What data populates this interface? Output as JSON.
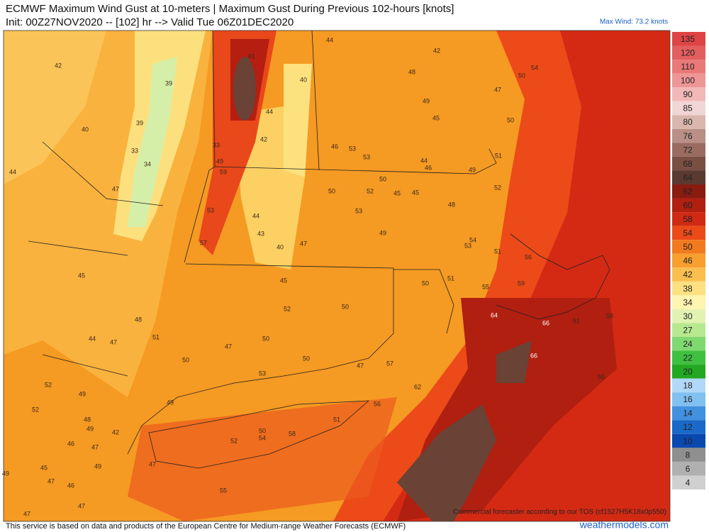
{
  "header": {
    "title": "ECMWF Maximum Wind Gust at 10-meters | Maximum Gust During Previous 102-hours [knots]",
    "subtitle": "Init: 00Z27NOV2020 -- [102] hr --> Valid Tue 06Z01DEC2020",
    "max_wind": "Max Wind: 73.2 knots"
  },
  "colorbar": {
    "levels": [
      135,
      120,
      110,
      100,
      90,
      85,
      80,
      76,
      72,
      68,
      64,
      62,
      60,
      58,
      54,
      50,
      46,
      42,
      38,
      34,
      30,
      27,
      24,
      22,
      20,
      18,
      16,
      14,
      12,
      10,
      8,
      6,
      4
    ],
    "colors": [
      "#de4444",
      "#e35e5e",
      "#e97878",
      "#ee9696",
      "#f2b8b8",
      "#f0d6d4",
      "#d9b7ae",
      "#b98f86",
      "#9a6c60",
      "#7a4f43",
      "#5a3a30",
      "#8a1b10",
      "#b01f10",
      "#d02a14",
      "#ec4a18",
      "#f27a1e",
      "#f89f30",
      "#fbbf50",
      "#fde080",
      "#fff4b0",
      "#e2f2b2",
      "#b8e890",
      "#80d870",
      "#40c040",
      "#22a822",
      "#b2d8f8",
      "#82c0f0",
      "#4290e0",
      "#1a68c8",
      "#0a48b0",
      "#8f8f8f",
      "#b0b0b0",
      "#d0d0d0"
    ]
  },
  "map": {
    "gust_labels": [
      42,
      40,
      44,
      47,
      39,
      33,
      34,
      39,
      61,
      40,
      44,
      42,
      33,
      49,
      59,
      53,
      57,
      44,
      43,
      40,
      47,
      50,
      52,
      50,
      45,
      45,
      53,
      49,
      48,
      46,
      53,
      53,
      44,
      46,
      49,
      42,
      44,
      48,
      49,
      45,
      50,
      54,
      47,
      50,
      51,
      52,
      53,
      54,
      51,
      56,
      45,
      45,
      52,
      50,
      50,
      51,
      55,
      59,
      64,
      66,
      66,
      51,
      58,
      55,
      48,
      51,
      44,
      47,
      50,
      47,
      50,
      50,
      53,
      47,
      57,
      62,
      52,
      49,
      52,
      49,
      48,
      49,
      42,
      46,
      47,
      50,
      54,
      58,
      52,
      51,
      56,
      45,
      47,
      46,
      47,
      49,
      55,
      47,
      47,
      49
    ],
    "tos_note": "Commercial forecaster according to our TOS (cf1527H5K18x0p550)"
  },
  "footer": {
    "disclaimer": "This service is based on data and products of the European Centre for Medium-range Weather Forecasts (ECMWF)",
    "site": "weathermodels.com"
  }
}
